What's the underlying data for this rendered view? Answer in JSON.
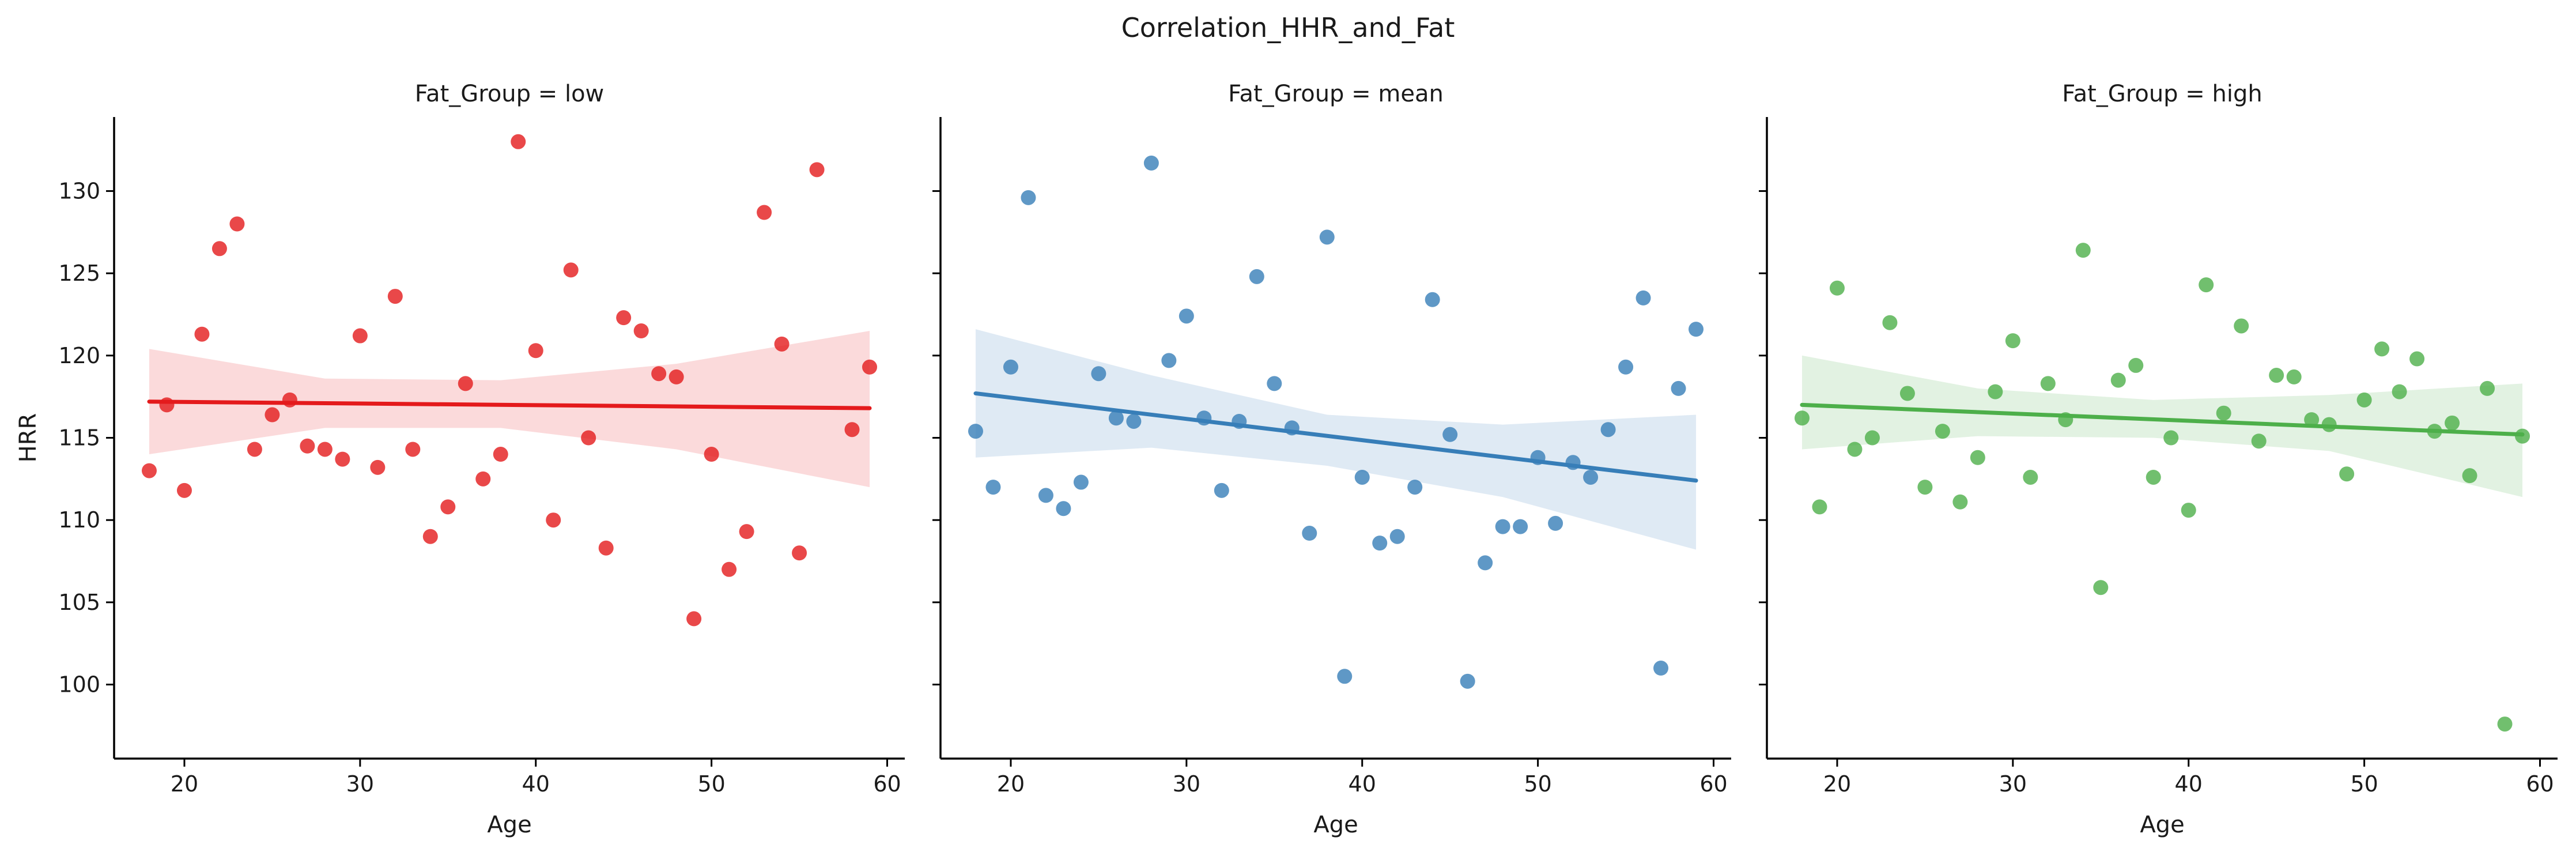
{
  "figure_title": "Correlation_HHR_and_Fat",
  "chart_data": [
    {
      "type": "scatter",
      "title": "Fat_Group = low",
      "xlabel": "Age",
      "ylabel": "HRR",
      "xlim": [
        16,
        61
      ],
      "ylim": [
        95.5,
        134.5
      ],
      "xticks": [
        20,
        30,
        40,
        50,
        60
      ],
      "yticks": [
        100,
        105,
        110,
        115,
        120,
        125,
        130
      ],
      "color": "#e41a1c",
      "x": [
        18,
        19,
        20,
        21,
        22,
        23,
        24,
        25,
        26,
        27,
        28,
        29,
        30,
        31,
        32,
        33,
        34,
        35,
        36,
        37,
        38,
        39,
        40,
        41,
        42,
        43,
        44,
        45,
        46,
        47,
        48,
        49,
        50,
        51,
        52,
        53,
        54,
        55,
        56,
        58,
        59
      ],
      "y": [
        113,
        117,
        111.8,
        121.3,
        126.5,
        128,
        114.3,
        116.4,
        117.3,
        114.5,
        114.3,
        113.7,
        121.2,
        113.2,
        123.6,
        114.3,
        109,
        110.8,
        118.3,
        112.5,
        114,
        133,
        120.3,
        110,
        125.2,
        115,
        108.3,
        122.3,
        121.5,
        118.9,
        118.7,
        104,
        114,
        107,
        109.3,
        128.7,
        120.7,
        108,
        131.3,
        115.5,
        119.3
      ],
      "regression": {
        "x": [
          18,
          59
        ],
        "y": [
          117.2,
          116.8
        ]
      },
      "ci_band": {
        "x": [
          18,
          28,
          38,
          48,
          59
        ],
        "upper": [
          120.4,
          118.6,
          118.5,
          119.5,
          121.5
        ],
        "lower": [
          114.0,
          115.6,
          115.6,
          114.3,
          112.0
        ]
      },
      "grid": false
    },
    {
      "type": "scatter",
      "title": "Fat_Group = mean",
      "xlabel": "Age",
      "ylabel": "",
      "xlim": [
        16,
        61
      ],
      "ylim": [
        95.5,
        134.5
      ],
      "xticks": [
        20,
        30,
        40,
        50,
        60
      ],
      "yticks": [
        100,
        105,
        110,
        115,
        120,
        125,
        130
      ],
      "color": "#377eb8",
      "x": [
        18,
        19,
        20,
        21,
        22,
        23,
        24,
        25,
        26,
        27,
        28,
        29,
        30,
        31,
        32,
        33,
        34,
        35,
        36,
        37,
        38,
        39,
        40,
        41,
        42,
        43,
        44,
        45,
        46,
        47,
        48,
        49,
        50,
        51,
        52,
        53,
        54,
        55,
        56,
        57,
        58,
        59
      ],
      "y": [
        115.4,
        112,
        119.3,
        129.6,
        111.5,
        110.7,
        112.3,
        118.9,
        116.2,
        116,
        131.7,
        119.7,
        122.4,
        116.2,
        111.8,
        116,
        124.8,
        118.3,
        115.6,
        109.2,
        127.2,
        100.5,
        112.6,
        108.6,
        109,
        112,
        123.4,
        115.2,
        100.2,
        107.4,
        109.6,
        109.6,
        113.8,
        109.8,
        113.5,
        112.6,
        115.5,
        119.3,
        123.5,
        101,
        118,
        121.6
      ],
      "regression": {
        "x": [
          18,
          59
        ],
        "y": [
          117.7,
          112.4
        ]
      },
      "ci_band": {
        "x": [
          18,
          28,
          38,
          48,
          59
        ],
        "upper": [
          121.6,
          118.8,
          116.4,
          115.8,
          116.4
        ],
        "lower": [
          113.8,
          114.4,
          113.3,
          111.4,
          108.2
        ]
      },
      "grid": false
    },
    {
      "type": "scatter",
      "title": "Fat_Group = high",
      "xlabel": "Age",
      "ylabel": "",
      "xlim": [
        16,
        61
      ],
      "ylim": [
        95.5,
        134.5
      ],
      "xticks": [
        20,
        30,
        40,
        50,
        60
      ],
      "yticks": [
        100,
        105,
        110,
        115,
        120,
        125,
        130
      ],
      "color": "#4daf4a",
      "x": [
        18,
        19,
        20,
        21,
        22,
        23,
        24,
        25,
        26,
        27,
        28,
        29,
        30,
        31,
        32,
        33,
        34,
        35,
        36,
        37,
        38,
        39,
        40,
        41,
        42,
        43,
        44,
        45,
        46,
        47,
        48,
        49,
        50,
        51,
        52,
        53,
        54,
        55,
        56,
        57,
        58,
        59
      ],
      "y": [
        116.2,
        110.8,
        124.1,
        114.3,
        115,
        122,
        117.7,
        112,
        115.4,
        111.1,
        113.8,
        117.8,
        120.9,
        112.6,
        118.3,
        116.1,
        126.4,
        105.9,
        118.5,
        119.4,
        112.6,
        115,
        110.6,
        124.3,
        116.5,
        121.8,
        114.8,
        118.8,
        118.7,
        116.1,
        115.8,
        112.8,
        117.3,
        120.4,
        117.8,
        119.8,
        115.4,
        115.9,
        112.7,
        118,
        97.6,
        115.1
      ],
      "regression": {
        "x": [
          18,
          59
        ],
        "y": [
          117,
          115.2
        ]
      },
      "ci_band": {
        "x": [
          18,
          28,
          38,
          48,
          59
        ],
        "upper": [
          120,
          118,
          117.3,
          117.6,
          118.3
        ],
        "lower": [
          114.3,
          115.1,
          115.0,
          114.2,
          111.4
        ]
      },
      "grid": false
    }
  ]
}
